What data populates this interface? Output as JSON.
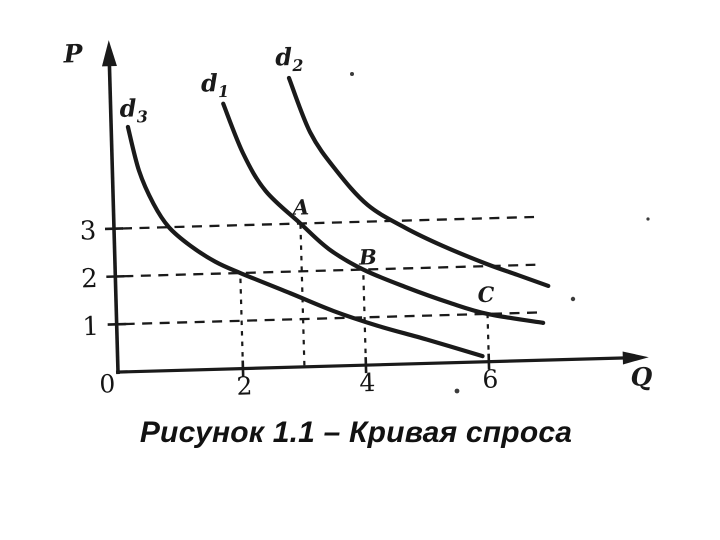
{
  "chart_data": {
    "type": "line",
    "title": "Рисунок 1.1 – Кривая спроса",
    "xlabel": "Q",
    "ylabel": "P",
    "origin_label": "0",
    "xlim": [
      0,
      8.6
    ],
    "ylim": [
      0,
      7
    ],
    "grid": "dashed-guides-only",
    "legend_position": "labels-at-curve-tops",
    "x_ticks": [
      {
        "value": 2,
        "label": "2"
      },
      {
        "value": 4,
        "label": "4"
      },
      {
        "value": 6,
        "label": "6"
      }
    ],
    "y_ticks": [
      {
        "value": 3,
        "label": "3"
      },
      {
        "value": 2,
        "label": "2"
      },
      {
        "value": 1,
        "label": "1"
      }
    ],
    "series": [
      {
        "name": "d3",
        "label_base": "d",
        "label_sub": "3",
        "points": [
          [
            0.24,
            5.12
          ],
          [
            0.4,
            4.2
          ],
          [
            0.62,
            3.5
          ],
          [
            0.86,
            3.0
          ],
          [
            1.2,
            2.6
          ],
          [
            1.6,
            2.25
          ],
          [
            2.0,
            2.0
          ],
          [
            2.8,
            1.55
          ],
          [
            3.5,
            1.15
          ],
          [
            4.2,
            0.82
          ],
          [
            5.0,
            0.5
          ],
          [
            5.9,
            0.12
          ]
        ]
      },
      {
        "name": "d1",
        "label_base": "d",
        "label_sub": "1",
        "points": [
          [
            1.8,
            5.55
          ],
          [
            2.1,
            4.5
          ],
          [
            2.45,
            3.7
          ],
          [
            3.0,
            3.0
          ],
          [
            3.45,
            2.45
          ],
          [
            4.0,
            2.0
          ],
          [
            4.7,
            1.6
          ],
          [
            5.4,
            1.25
          ],
          [
            6.0,
            1.0
          ],
          [
            6.9,
            0.78
          ]
        ]
      },
      {
        "name": "d2",
        "label_base": "d",
        "label_sub": "2",
        "points": [
          [
            2.88,
            6.05
          ],
          [
            3.2,
            4.9
          ],
          [
            3.6,
            4.1
          ],
          [
            4.1,
            3.35
          ],
          [
            4.7,
            2.85
          ],
          [
            5.3,
            2.45
          ],
          [
            6.0,
            2.05
          ],
          [
            6.5,
            1.8
          ],
          [
            7.0,
            1.55
          ]
        ]
      }
    ],
    "marked_points": [
      {
        "label": "A",
        "q": 3,
        "p": 3
      },
      {
        "label": "B",
        "q": 4,
        "p": 2
      },
      {
        "label": "C",
        "q": 6,
        "p": 1
      }
    ],
    "dashed_guides": {
      "horizontal": [
        {
          "p": 3,
          "q_end": 6.8
        },
        {
          "p": 2,
          "q_end": 6.8
        },
        {
          "p": 1,
          "q_end": 6.9
        }
      ],
      "vertical": [
        {
          "q": 2,
          "p_end": 2
        },
        {
          "q": 3,
          "p_end": 3
        },
        {
          "q": 4,
          "p_end": 2
        },
        {
          "q": 6,
          "p_end": 1
        }
      ]
    },
    "ink_color": "#1a1a1a",
    "background_color": "#ffffff"
  }
}
